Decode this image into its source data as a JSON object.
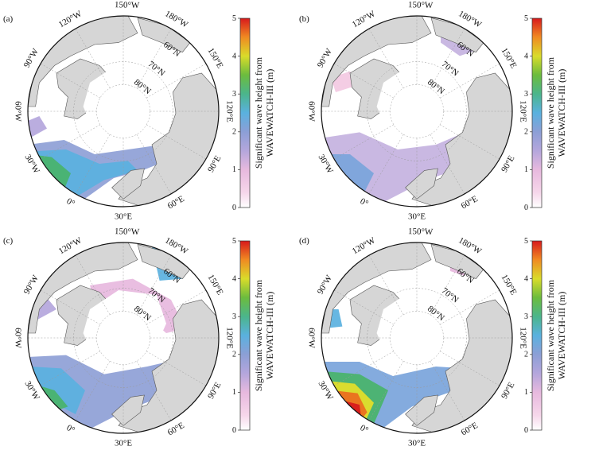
{
  "figure": {
    "panels": [
      {
        "tag": "(a)",
        "colorbar": {
          "title_line1": "Significant wave height from",
          "title_line2": "WAVEWATCH-III (m)",
          "ticks": [
            "0",
            "1",
            "2",
            "3",
            "4",
            "5"
          ]
        }
      },
      {
        "tag": "(b)",
        "colorbar": {
          "title_line1": "Significant wave height from",
          "title_line2": "WAVEWATCH-III (m)",
          "ticks": [
            "0",
            "1",
            "2",
            "3",
            "4",
            "5"
          ]
        }
      },
      {
        "tag": "(c)",
        "colorbar": {
          "title_line1": "Significant wave height from",
          "title_line2": "WAVEWATCH-III (m)",
          "ticks": [
            "0",
            "1",
            "2",
            "3",
            "4",
            "5"
          ]
        }
      },
      {
        "tag": "(d)",
        "colorbar": {
          "title_line1": "Significant wave height from",
          "title_line2": "WAVEWATCH-III (m)",
          "ticks": [
            "0",
            "1",
            "2",
            "3",
            "4",
            "5"
          ]
        }
      }
    ],
    "longitude_labels": [
      "150°W",
      "120°W",
      "90°W",
      "60°W",
      "30°W",
      "0°",
      "30°E",
      "60°E",
      "90°E",
      "120°E",
      "150°E",
      "180°W"
    ],
    "latitude_labels": [
      "60°N",
      "70°N",
      "80°N"
    ],
    "colors": {
      "land": "#d6d6d6",
      "ice": "#ffffff",
      "colormap": [
        "#ffffff",
        "#f3c9e2",
        "#a39bd6",
        "#55b1e0",
        "#49b36a",
        "#e6df28",
        "#ec6b1e",
        "#d7191c"
      ]
    }
  }
}
